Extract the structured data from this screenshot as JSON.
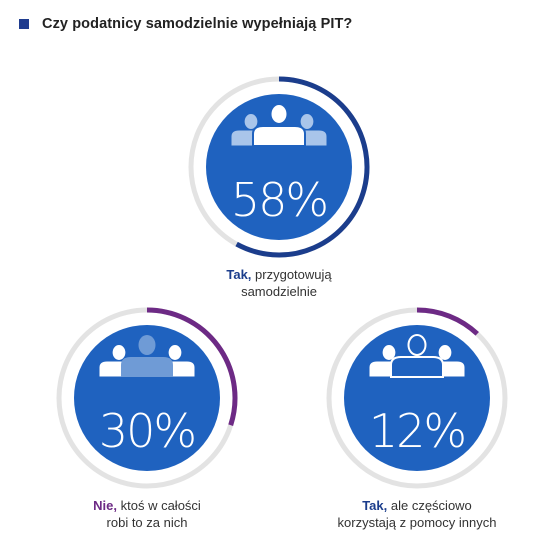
{
  "title": "Czy podatnicy samodzielnie wypełniają PIT?",
  "colors": {
    "accent_blue": "#1f62bf",
    "dark_blue": "#1b3d8c",
    "purple": "#6d2a85",
    "track": "#e3e3e3",
    "icon_front": "#ffffff",
    "icon_back": "#a9c5ea",
    "icon_highlight": "#6f9bd6"
  },
  "chart_data": {
    "type": "pie",
    "title": "Czy podatnicy samodzielnie wypełniają PIT?",
    "unit": "%",
    "slices": [
      {
        "label_bold": "Tak,",
        "label_rest": "przygotowują samodzielnie",
        "value": 58,
        "display": "58%",
        "ring_color": "#1b3d8c",
        "highlight": "front"
      },
      {
        "label_bold": "Nie,",
        "label_rest": "ktoś w całości robi to za nich",
        "value": 30,
        "display": "30%",
        "ring_color": "#6d2a85",
        "highlight": "middle-back"
      },
      {
        "label_bold": "Tak,",
        "label_rest": "ale częściowo korzystają z pomocy innych",
        "value": 12,
        "display": "12%",
        "ring_color": "#6d2a85",
        "highlight": "front-outline"
      }
    ]
  },
  "captions": [
    {
      "line1_bold": "Tak,",
      "line1_rest": " przygotowują",
      "line2": "samodzielnie",
      "bold_color": "#1b3d8c"
    },
    {
      "line1_bold": "Nie,",
      "line1_rest": " ktoś w całości",
      "line2": "robi to za nich",
      "bold_color": "#6d2a85"
    },
    {
      "line1_bold": "Tak,",
      "line1_rest": " ale częściowo",
      "line2": "korzystają z pomocy innych",
      "bold_color": "#1b3d8c"
    }
  ]
}
